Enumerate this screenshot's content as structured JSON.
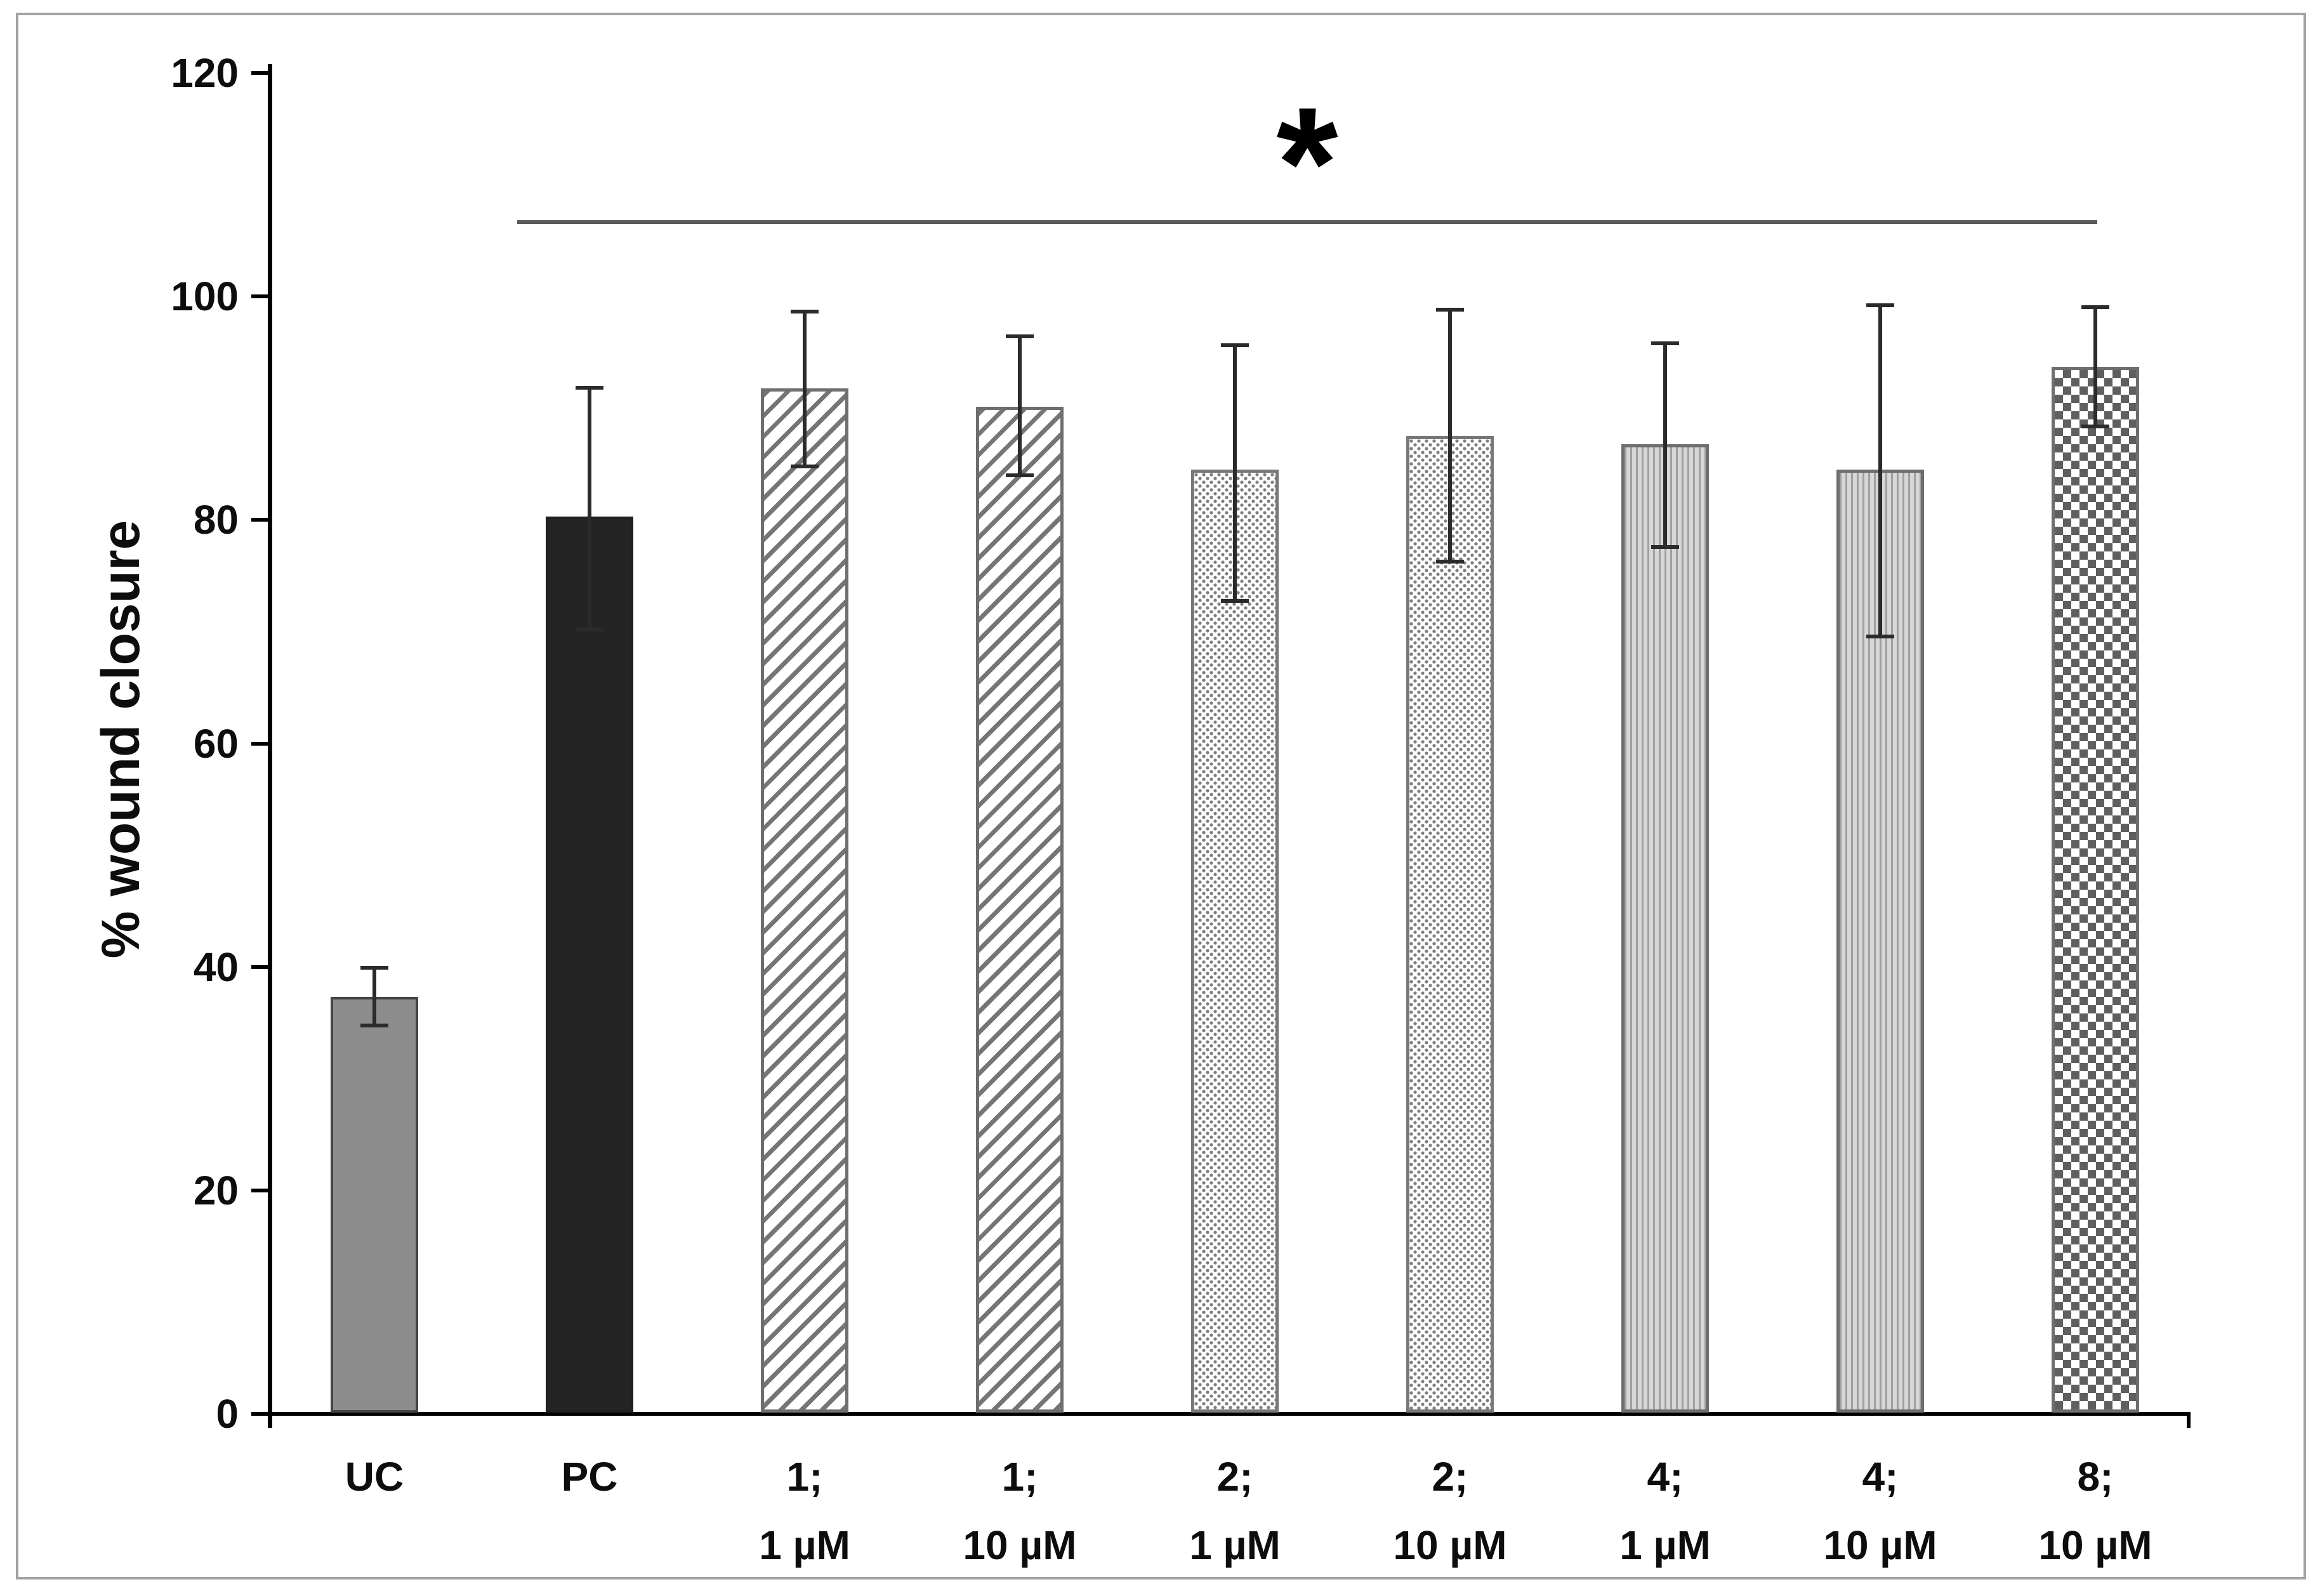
{
  "figure": {
    "border_color": "#a3a3a3",
    "background": "#ffffff"
  },
  "chart_data": {
    "type": "bar",
    "title": "",
    "xlabel": "",
    "ylabel": "% wound closure",
    "ylim": [
      0,
      120
    ],
    "yticks": [
      0,
      20,
      40,
      60,
      80,
      100,
      120
    ],
    "grid": false,
    "legend": "none",
    "categories": [
      "UC",
      "PC",
      "1; 1 µM",
      "1; 10 µM",
      "2; 1 µM",
      "2; 10 µM",
      "4; 1 µM",
      "4; 10 µM",
      "8; 10 µM"
    ],
    "bars": [
      {
        "label": [
          "UC"
        ],
        "value": 37.3,
        "err_up": 2.8,
        "err_down": 2.7,
        "pattern": "solid-gray",
        "fill": "#8d8d8d"
      },
      {
        "label": [
          "PC"
        ],
        "value": 80.3,
        "err_up": 11.7,
        "err_down": 10.3,
        "pattern": "solid-black",
        "fill": "#242424"
      },
      {
        "label": [
          "1;",
          "1 µM"
        ],
        "value": 91.8,
        "err_up": 7.0,
        "err_down": 7.2,
        "pattern": "diagonal-stripes",
        "fill": "#ffffff"
      },
      {
        "label": [
          "1;",
          "10 µM"
        ],
        "value": 90.1,
        "err_up": 6.5,
        "err_down": 6.3,
        "pattern": "diagonal-stripes",
        "fill": "#ffffff"
      },
      {
        "label": [
          "2;",
          "1 µM"
        ],
        "value": 84.5,
        "err_up": 11.3,
        "err_down": 11.9,
        "pattern": "stipple-dots",
        "fill": "#ffffff"
      },
      {
        "label": [
          "2;",
          "10 µM"
        ],
        "value": 87.5,
        "err_up": 11.5,
        "err_down": 11.4,
        "pattern": "stipple-dots",
        "fill": "#ffffff"
      },
      {
        "label": [
          "4;",
          "1 µM"
        ],
        "value": 86.8,
        "err_up": 9.2,
        "err_down": 9.4,
        "pattern": "vertical-lines",
        "fill": "#d7d7d7"
      },
      {
        "label": [
          "4;",
          "10 µM"
        ],
        "value": 84.5,
        "err_up": 14.9,
        "err_down": 15.1,
        "pattern": "vertical-lines",
        "fill": "#d7d7d7"
      },
      {
        "label": [
          "8;",
          "10 µM"
        ],
        "value": 93.7,
        "err_up": 5.5,
        "err_down": 5.5,
        "pattern": "checkerboard",
        "fill": "#ffffff"
      }
    ],
    "annotation": {
      "symbol": "*",
      "type": "significance-bracket",
      "from_category": "PC",
      "to_category": "8; 10 µM",
      "y_value": 106.8
    },
    "colors": {
      "axis": "#000000",
      "error_bars": "#2b2b2b",
      "significance_line": "#595959",
      "text": "#0d0d0d",
      "solid_gray_bar": "#8d8d8d",
      "solid_black_bar": "#242424",
      "pattern_gray": "#757575"
    }
  }
}
